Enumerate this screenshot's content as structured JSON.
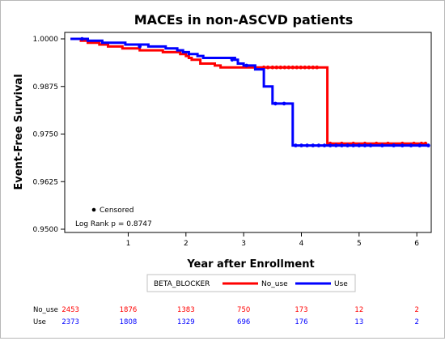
{
  "chart_data": {
    "type": "line",
    "title": "MACEs in non-ASCVD patients",
    "xlabel": "Year after Enrollment",
    "ylabel": "Event-Free Survival",
    "xlim": [
      -0.1,
      6.25
    ],
    "ylim": [
      0.95,
      1.0
    ],
    "xticks": [
      "1",
      "2",
      "3",
      "4",
      "5",
      "6"
    ],
    "yticks": [
      "0.9500",
      "0.9625",
      "0.9750",
      "0.9875",
      "1.0000"
    ],
    "legend": {
      "title": "BETA_BLOCKER",
      "placement": "bottom"
    },
    "censor_label": "Censored",
    "annotation": "Log Rank p = 0.8747",
    "series": [
      {
        "name": "No_use",
        "color": "#ff0000",
        "steps": [
          [
            0,
            1.0
          ],
          [
            0.18,
            0.9995
          ],
          [
            0.3,
            0.999
          ],
          [
            0.5,
            0.9985
          ],
          [
            0.65,
            0.998
          ],
          [
            0.9,
            0.9975
          ],
          [
            1.2,
            0.997
          ],
          [
            1.6,
            0.9965
          ],
          [
            1.9,
            0.996
          ],
          [
            2.0,
            0.9955
          ],
          [
            2.05,
            0.995
          ],
          [
            2.1,
            0.9945
          ],
          [
            2.25,
            0.9935
          ],
          [
            2.5,
            0.993
          ],
          [
            2.6,
            0.9925
          ],
          [
            3.3,
            0.9925
          ],
          [
            4.45,
            0.9725
          ],
          [
            6.15,
            0.9725
          ]
        ],
        "censored": [
          [
            3.35,
            0.9925
          ],
          [
            3.42,
            0.9925
          ],
          [
            3.5,
            0.9925
          ],
          [
            3.57,
            0.9925
          ],
          [
            3.64,
            0.9925
          ],
          [
            3.71,
            0.9925
          ],
          [
            3.78,
            0.9925
          ],
          [
            3.85,
            0.9925
          ],
          [
            3.92,
            0.9925
          ],
          [
            3.99,
            0.9925
          ],
          [
            4.06,
            0.9925
          ],
          [
            4.13,
            0.9925
          ],
          [
            4.2,
            0.9925
          ],
          [
            4.27,
            0.9925
          ],
          [
            4.5,
            0.9725
          ],
          [
            4.7,
            0.9725
          ],
          [
            4.9,
            0.9725
          ],
          [
            5.1,
            0.9725
          ],
          [
            5.3,
            0.9725
          ],
          [
            5.5,
            0.9725
          ],
          [
            5.75,
            0.9725
          ],
          [
            5.95,
            0.9725
          ],
          [
            6.08,
            0.9725
          ],
          [
            6.15,
            0.9725
          ]
        ]
      },
      {
        "name": "Use",
        "color": "#0000ff",
        "steps": [
          [
            0,
            1.0
          ],
          [
            0.3,
            0.9995
          ],
          [
            0.55,
            0.999
          ],
          [
            0.95,
            0.9985
          ],
          [
            1.35,
            0.998
          ],
          [
            1.65,
            0.9975
          ],
          [
            1.85,
            0.997
          ],
          [
            1.95,
            0.9965
          ],
          [
            2.05,
            0.996
          ],
          [
            2.2,
            0.9955
          ],
          [
            2.3,
            0.995
          ],
          [
            2.85,
            0.9945
          ],
          [
            2.9,
            0.9935
          ],
          [
            3.0,
            0.993
          ],
          [
            3.2,
            0.992
          ],
          [
            3.35,
            0.9875
          ],
          [
            3.5,
            0.983
          ],
          [
            3.6,
            0.983
          ],
          [
            3.85,
            0.972
          ],
          [
            6.2,
            0.972
          ]
        ],
        "censored": [
          [
            0.2,
            1.0
          ],
          [
            1.2,
            0.998
          ],
          [
            2.8,
            0.9945
          ],
          [
            3.05,
            0.993
          ],
          [
            3.55,
            0.983
          ],
          [
            3.7,
            0.983
          ],
          [
            3.9,
            0.972
          ],
          [
            4.0,
            0.972
          ],
          [
            4.1,
            0.972
          ],
          [
            4.2,
            0.972
          ],
          [
            4.3,
            0.972
          ],
          [
            4.4,
            0.972
          ],
          [
            4.5,
            0.972
          ],
          [
            4.6,
            0.972
          ],
          [
            4.7,
            0.972
          ],
          [
            4.8,
            0.972
          ],
          [
            4.9,
            0.972
          ],
          [
            5.0,
            0.972
          ],
          [
            5.1,
            0.972
          ],
          [
            5.2,
            0.972
          ],
          [
            5.4,
            0.972
          ],
          [
            5.6,
            0.972
          ],
          [
            5.75,
            0.972
          ],
          [
            5.9,
            0.972
          ],
          [
            6.05,
            0.972
          ],
          [
            6.2,
            0.972
          ]
        ]
      }
    ],
    "risk_table": [
      {
        "label": "No_use",
        "color": "#ff0000",
        "values": [
          "2453",
          "1876",
          "1383",
          "750",
          "173",
          "12",
          "2"
        ]
      },
      {
        "label": "Use",
        "color": "#0000ff",
        "values": [
          "2373",
          "1808",
          "1329",
          "696",
          "176",
          "13",
          "2"
        ]
      }
    ],
    "risk_x": [
      0,
      1,
      2,
      3,
      4,
      5,
      6
    ]
  }
}
